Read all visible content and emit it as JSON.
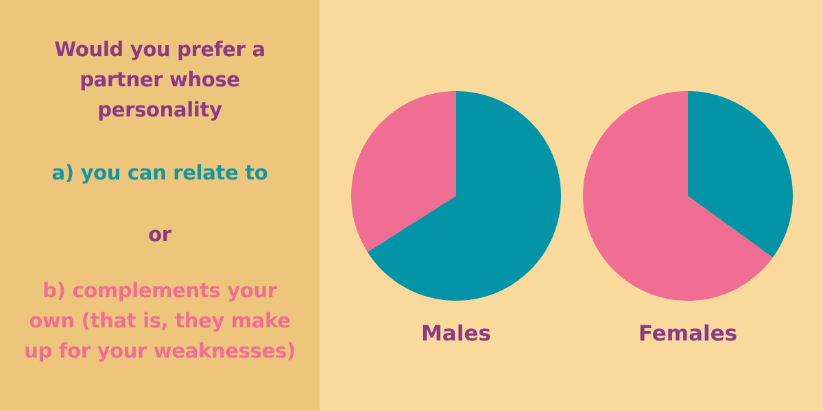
{
  "colors": {
    "left_background": "#edc67c",
    "right_background": "#f9d99c",
    "question_text": "#8a3a86",
    "option_a_text": "#14969f",
    "option_b_text": "#f06e93",
    "series_relate": "#0394a8",
    "series_complements": "#f06e93",
    "chart_label_text": "#8a3a86"
  },
  "question": {
    "lines": [
      "Would you prefer a",
      "partner whose",
      "personality"
    ]
  },
  "option_a": {
    "lines": [
      "a) you can relate to"
    ]
  },
  "or_text": "or",
  "option_b": {
    "lines": [
      "b) complements your",
      "own (that is, they make",
      "up for your weaknesses)"
    ]
  },
  "chart_data": [
    {
      "type": "pie",
      "label": "Males",
      "categories": [
        "a) you can relate to",
        "b) complements your own"
      ],
      "values": [
        66,
        34
      ],
      "colors": [
        "#0394a8",
        "#f06e93"
      ],
      "start": "12 o'clock",
      "direction": "clockwise",
      "legend": "none"
    },
    {
      "type": "pie",
      "label": "Females",
      "categories": [
        "a) you can relate to",
        "b) complements your own"
      ],
      "values": [
        35,
        65
      ],
      "colors": [
        "#0394a8",
        "#f06e93"
      ],
      "start": "12 o'clock",
      "direction": "clockwise",
      "legend": "none"
    }
  ]
}
